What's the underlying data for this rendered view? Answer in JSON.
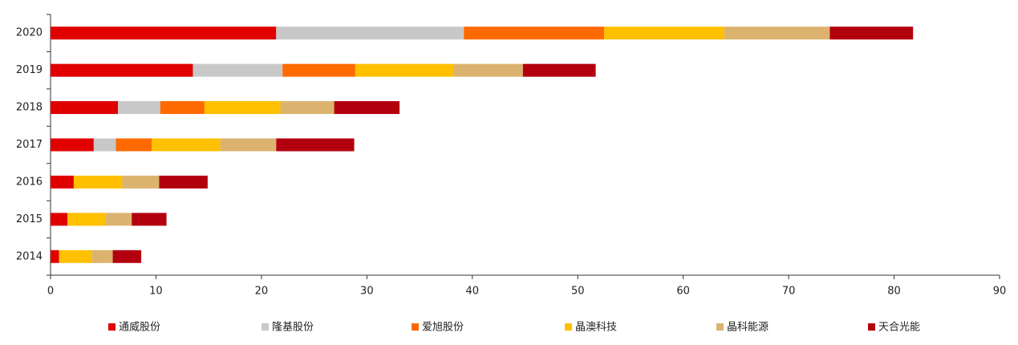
{
  "chart_data": {
    "type": "stacked_barh",
    "categories": [
      "2020",
      "2019",
      "2018",
      "2017",
      "2016",
      "2015",
      "2014"
    ],
    "series": [
      {
        "name": "通威股份",
        "color": "#e00000",
        "values": [
          21.4,
          13.5,
          6.4,
          4.1,
          2.2,
          1.6,
          0.8
        ]
      },
      {
        "name": "隆基股份",
        "color": "#c8c8c8",
        "values": [
          17.8,
          8.5,
          4.0,
          2.1,
          0,
          0,
          0
        ]
      },
      {
        "name": "爱旭股份",
        "color": "#ff6a00",
        "values": [
          13.3,
          6.9,
          4.2,
          3.4,
          0,
          0,
          0
        ]
      },
      {
        "name": "晶澳科技",
        "color": "#ffc000",
        "values": [
          11.4,
          9.3,
          7.2,
          6.5,
          4.6,
          3.6,
          3.1
        ]
      },
      {
        "name": "晶科能源",
        "color": "#dcb36e",
        "values": [
          10.0,
          6.6,
          5.1,
          5.3,
          3.5,
          2.5,
          2.0
        ]
      },
      {
        "name": "天合光能",
        "color": "#b3000e",
        "values": [
          7.9,
          6.9,
          6.2,
          7.4,
          4.6,
          3.3,
          2.7
        ]
      }
    ],
    "xlim": [
      0,
      90
    ],
    "xticks": [
      0,
      10,
      20,
      30,
      40,
      50,
      60,
      70,
      80,
      90
    ],
    "legend": "bottom"
  }
}
